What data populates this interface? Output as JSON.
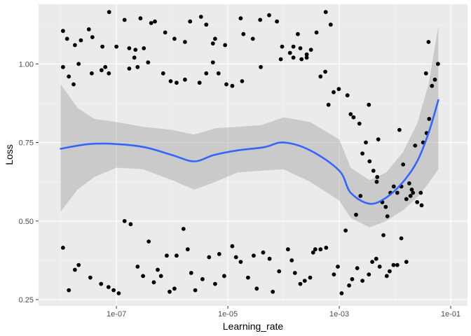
{
  "chart_data": {
    "type": "scatter",
    "title": "",
    "xlabel": "Learning_rate",
    "ylabel": "Loss",
    "x_scale": "log10",
    "xlim": [
      4e-09,
      0.2
    ],
    "ylim": [
      0.23,
      1.19
    ],
    "x_ticks": [
      {
        "value": 1e-07,
        "label": "1e-07"
      },
      {
        "value": 1e-05,
        "label": "1e-05"
      },
      {
        "value": 0.001,
        "label": "1e-03"
      },
      {
        "value": 0.1,
        "label": "1e-01"
      }
    ],
    "y_ticks": [
      {
        "value": 0.25,
        "label": "0.25"
      },
      {
        "value": 0.5,
        "label": "0.50"
      },
      {
        "value": 0.75,
        "label": "0.75"
      },
      {
        "value": 1.0,
        "label": "1.00"
      }
    ],
    "grid": true,
    "legend": "none",
    "colors": {
      "panel": "#ebebeb",
      "grid_major": "#ffffff",
      "grid_minor": "#f5f5f5",
      "points": "#000000",
      "smooth_line": "#3366ff",
      "ribbon": "#bdbdbd"
    },
    "points": [
      [
        1.1e-08,
        1.105
      ],
      [
        1.3e-08,
        1.08
      ],
      [
        1.8e-08,
        1.06
      ],
      [
        2.3e-08,
        1.075
      ],
      [
        3.2e-08,
        1.11
      ],
      [
        3.7e-08,
        1.085
      ],
      [
        5.6e-08,
        1.055
      ],
      [
        7.4e-08,
        1.165
      ],
      [
        1e-07,
        1.055
      ],
      [
        1.4e-07,
        1.14
      ],
      [
        1.7e-07,
        1.05
      ],
      [
        2.2e-07,
        1.045
      ],
      [
        2.7e-07,
        1.145
      ],
      [
        3.1e-07,
        1.05
      ],
      [
        4.2e-07,
        1.13
      ],
      [
        4.9e-07,
        1.135
      ],
      [
        7.5e-07,
        1.1
      ],
      [
        1.1e-06,
        1.08
      ],
      [
        1.7e-06,
        1.07
      ],
      [
        2.1e-06,
        1.135
      ],
      [
        3.3e-06,
        1.15
      ],
      [
        4.1e-06,
        1.125
      ],
      [
        5.4e-06,
        1.065
      ],
      [
        5.9e-06,
        1.08
      ],
      [
        8.9e-06,
        1.06
      ],
      [
        1.7e-05,
        1.145
      ],
      [
        1.9e-05,
        1.095
      ],
      [
        2.8e-05,
        1.08
      ],
      [
        3.8e-05,
        1.14
      ],
      [
        5.5e-05,
        1.155
      ],
      [
        7.6e-05,
        1.135
      ],
      [
        9.4e-05,
        1.055
      ],
      [
        0.00015,
        1.055
      ],
      [
        0.00018,
        1.095
      ],
      [
        0.0002,
        1.05
      ],
      [
        0.00026,
        1.03
      ],
      [
        0.00031,
        1.045
      ],
      [
        0.00039,
        1.1
      ],
      [
        0.00057,
        1.165
      ],
      [
        0.0007,
        1.125
      ],
      [
        1.1e-08,
        0.99
      ],
      [
        1.4e-08,
        0.96
      ],
      [
        1.7e-08,
        0.935
      ],
      [
        2.1e-08,
        1.0
      ],
      [
        3.6e-08,
        0.97
      ],
      [
        5.4e-08,
        0.98
      ],
      [
        6.3e-08,
        0.99
      ],
      [
        7.3e-08,
        0.97
      ],
      [
        1.7e-07,
        0.985
      ],
      [
        2.1e-07,
        1.02
      ],
      [
        2.4e-07,
        0.99
      ],
      [
        3.7e-07,
        1.005
      ],
      [
        6.9e-07,
        0.97
      ],
      [
        9.4e-07,
        0.945
      ],
      [
        1.2e-06,
        0.94
      ],
      [
        1.7e-06,
        0.95
      ],
      [
        3.1e-06,
        0.94
      ],
      [
        4.1e-06,
        0.97
      ],
      [
        5.4e-06,
        1.005
      ],
      [
        6.8e-06,
        0.97
      ],
      [
        9.4e-06,
        0.935
      ],
      [
        1.2e-05,
        0.93
      ],
      [
        1.8e-05,
        0.945
      ],
      [
        3.9e-05,
        0.99
      ],
      [
        8.9e-05,
        1.015
      ],
      [
        0.00013,
        1.035
      ],
      [
        0.00015,
        1.02
      ],
      [
        0.00021,
        1.015
      ],
      [
        0.00026,
        1.02
      ],
      [
        0.00046,
        0.96
      ],
      [
        0.00056,
        0.975
      ],
      [
        0.00064,
        0.87
      ],
      [
        0.00079,
        0.91
      ],
      [
        0.00098,
        0.92
      ],
      [
        0.0014,
        0.9
      ],
      [
        0.0016,
        0.84
      ],
      [
        0.0018,
        0.83
      ],
      [
        0.0023,
        0.81
      ],
      [
        1.1e-08,
        0.415
      ],
      [
        1.4e-08,
        0.28
      ],
      [
        1.8e-08,
        0.345
      ],
      [
        2.1e-08,
        0.36
      ],
      [
        3.4e-08,
        0.32
      ],
      [
        5.3e-08,
        0.3
      ],
      [
        7.2e-08,
        0.29
      ],
      [
        8.9e-08,
        0.28
      ],
      [
        1.1e-07,
        0.27
      ],
      [
        1.4e-07,
        0.5
      ],
      [
        1.8e-07,
        0.49
      ],
      [
        2.4e-07,
        0.355
      ],
      [
        3e-07,
        0.325
      ],
      [
        3.8e-07,
        0.435
      ],
      [
        4.7e-07,
        0.305
      ],
      [
        5.5e-07,
        0.345
      ],
      [
        6.3e-07,
        0.325
      ],
      [
        8e-07,
        0.39
      ],
      [
        9e-07,
        0.275
      ],
      [
        1.1e-06,
        0.285
      ],
      [
        1.2e-06,
        0.39
      ],
      [
        1.6e-06,
        0.475
      ],
      [
        1.9e-06,
        0.41
      ],
      [
        2.2e-06,
        0.335
      ],
      [
        2.6e-06,
        0.28
      ],
      [
        3.5e-06,
        0.315
      ],
      [
        4.6e-06,
        0.385
      ],
      [
        5.9e-06,
        0.3
      ],
      [
        7e-06,
        0.395
      ],
      [
        8.6e-06,
        0.325
      ],
      [
        1.2e-05,
        0.42
      ],
      [
        1.4e-05,
        0.385
      ],
      [
        1.7e-05,
        0.37
      ],
      [
        2.3e-05,
        0.32
      ],
      [
        2.9e-05,
        0.39
      ],
      [
        3.3e-05,
        0.285
      ],
      [
        4.3e-05,
        0.4
      ],
      [
        5.6e-05,
        0.38
      ],
      [
        6.4e-05,
        0.275
      ],
      [
        8.3e-05,
        0.34
      ],
      [
        0.00012,
        0.41
      ],
      [
        0.00014,
        0.375
      ],
      [
        0.00016,
        0.335
      ],
      [
        0.0002,
        0.3
      ],
      [
        0.00024,
        0.31
      ],
      [
        0.0003,
        0.32
      ],
      [
        0.00034,
        0.4
      ],
      [
        0.00037,
        0.41
      ],
      [
        0.00046,
        0.41
      ],
      [
        0.00058,
        0.415
      ],
      [
        0.0008,
        0.33
      ],
      [
        0.00094,
        0.355
      ],
      [
        0.0011,
        0.27
      ],
      [
        0.0013,
        0.47
      ],
      [
        0.0015,
        0.295
      ],
      [
        0.0017,
        0.315
      ],
      [
        0.0021,
        0.35
      ],
      [
        0.0026,
        0.31
      ],
      [
        0.0034,
        0.33
      ],
      [
        0.0039,
        0.37
      ],
      [
        0.0046,
        0.38
      ],
      [
        0.0053,
        0.355
      ],
      [
        0.0062,
        0.455
      ],
      [
        0.0071,
        0.325
      ],
      [
        0.008,
        0.34
      ],
      [
        0.0094,
        0.36
      ],
      [
        0.011,
        0.36
      ],
      [
        0.013,
        0.445
      ],
      [
        0.016,
        0.37
      ],
      [
        0.019,
        0.58
      ],
      [
        0.002,
        0.52
      ],
      [
        0.0024,
        0.58
      ],
      [
        0.0026,
        0.715
      ],
      [
        0.003,
        0.75
      ],
      [
        0.0035,
        0.69
      ],
      [
        0.0041,
        0.66
      ],
      [
        0.0048,
        0.64
      ],
      [
        0.0059,
        0.56
      ],
      [
        0.0068,
        0.545
      ],
      [
        0.0073,
        0.515
      ],
      [
        0.0083,
        0.59
      ],
      [
        0.0095,
        0.61
      ],
      [
        0.011,
        0.59
      ],
      [
        0.012,
        0.79
      ],
      [
        0.014,
        0.68
      ],
      [
        0.016,
        0.57
      ],
      [
        0.018,
        0.62
      ],
      [
        0.021,
        0.59
      ],
      [
        0.025,
        0.56
      ],
      [
        0.029,
        0.59
      ],
      [
        0.032,
        0.75
      ],
      [
        0.037,
        0.78
      ],
      [
        0.041,
        0.825
      ],
      [
        0.046,
        0.93
      ],
      [
        0.052,
        0.95
      ],
      [
        0.059,
        1.0
      ],
      [
        0.03,
        0.55
      ],
      [
        0.036,
        0.97
      ],
      [
        0.04,
        1.07
      ],
      [
        0.0034,
        0.87
      ],
      [
        0.005,
        0.76
      ],
      [
        0.023,
        0.74
      ],
      [
        0.0047,
        0.625
      ],
      [
        0.013,
        0.61
      ],
      [
        0.02,
        0.6
      ]
    ],
    "smooth_line": [
      [
        1e-08,
        0.73
      ],
      [
        3.2e-08,
        0.745
      ],
      [
        1e-07,
        0.745
      ],
      [
        3.2e-07,
        0.735
      ],
      [
        1e-06,
        0.71
      ],
      [
        2.5e-06,
        0.69
      ],
      [
        5.6e-06,
        0.71
      ],
      [
        1.5e-05,
        0.725
      ],
      [
        4.5e-05,
        0.735
      ],
      [
        0.0001,
        0.75
      ],
      [
        0.0003,
        0.725
      ],
      [
        0.001,
        0.66
      ],
      [
        0.0016,
        0.59
      ],
      [
        0.0035,
        0.555
      ],
      [
        0.007,
        0.575
      ],
      [
        0.014,
        0.625
      ],
      [
        0.025,
        0.69
      ],
      [
        0.04,
        0.78
      ],
      [
        0.06,
        0.885
      ]
    ],
    "ribbon_upper": [
      [
        1e-08,
        0.935
      ],
      [
        2e-08,
        0.86
      ],
      [
        4e-08,
        0.825
      ],
      [
        1e-07,
        0.815
      ],
      [
        3e-07,
        0.8
      ],
      [
        1e-06,
        0.79
      ],
      [
        2.5e-06,
        0.775
      ],
      [
        6e-06,
        0.795
      ],
      [
        1.5e-05,
        0.8
      ],
      [
        4e-05,
        0.805
      ],
      [
        0.0001,
        0.83
      ],
      [
        0.0003,
        0.815
      ],
      [
        0.001,
        0.76
      ],
      [
        0.0016,
        0.67
      ],
      [
        0.0035,
        0.63
      ],
      [
        0.007,
        0.655
      ],
      [
        0.014,
        0.72
      ],
      [
        0.025,
        0.81
      ],
      [
        0.04,
        0.935
      ],
      [
        0.06,
        1.12
      ]
    ],
    "ribbon_lower": [
      [
        1e-08,
        0.53
      ],
      [
        2e-08,
        0.6
      ],
      [
        4e-08,
        0.64
      ],
      [
        1e-07,
        0.67
      ],
      [
        3e-07,
        0.665
      ],
      [
        1e-06,
        0.63
      ],
      [
        2.5e-06,
        0.6
      ],
      [
        6e-06,
        0.625
      ],
      [
        1.5e-05,
        0.655
      ],
      [
        4e-05,
        0.66
      ],
      [
        0.0001,
        0.665
      ],
      [
        0.0003,
        0.625
      ],
      [
        0.001,
        0.565
      ],
      [
        0.0016,
        0.51
      ],
      [
        0.0035,
        0.48
      ],
      [
        0.007,
        0.5
      ],
      [
        0.014,
        0.535
      ],
      [
        0.025,
        0.575
      ],
      [
        0.04,
        0.62
      ],
      [
        0.06,
        0.665
      ]
    ]
  }
}
